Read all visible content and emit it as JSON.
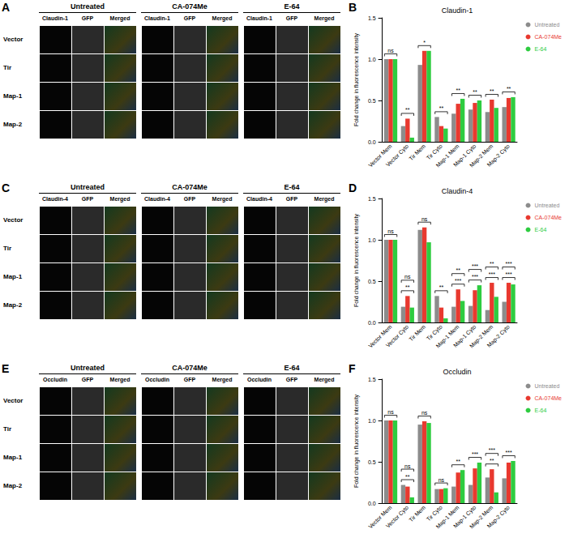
{
  "image_panels": [
    {
      "panel": "A",
      "groups": [
        "Untreated",
        "CA-074Me",
        "E-64"
      ],
      "columns": [
        "Claudin-1",
        "GFP",
        "Merged"
      ],
      "rows": [
        "Vector",
        "Tir",
        "Map-1",
        "Map-2"
      ]
    },
    {
      "panel": "C",
      "groups": [
        "Untreated",
        "CA-074Me",
        "E-64"
      ],
      "columns": [
        "Claudin-4",
        "GFP",
        "Merged"
      ],
      "rows": [
        "Vector",
        "Tir",
        "Map-1",
        "Map-2"
      ]
    },
    {
      "panel": "E",
      "groups": [
        "Untreated",
        "CA-074Me",
        "E-64"
      ],
      "columns": [
        "Occludin",
        "GFP",
        "Merged"
      ],
      "rows": [
        "Vector",
        "Tir",
        "Map-1",
        "Map-2"
      ]
    }
  ],
  "chart_data": [
    {
      "panel": "B",
      "type": "bar",
      "title": "Claudin-1",
      "ylabel": "Fold change in fluorescence intensity",
      "categories": [
        "Vector Mem",
        "Vector Cyto",
        "Tir Mem",
        "Tir Cyto",
        "Map-1 Mem",
        "Map-1 Cyto",
        "Map-2 Mem",
        "Map-2 Cyto"
      ],
      "series": [
        {
          "name": "Untreated",
          "color": "#8c8c8c",
          "values": [
            1,
            0.19,
            0.93,
            0.3,
            0.34,
            0.39,
            0.36,
            0.42
          ]
        },
        {
          "name": "CA-074Me",
          "color": "#e8392f",
          "values": [
            1,
            0.28,
            1.1,
            0.19,
            0.46,
            0.47,
            0.51,
            0.53
          ]
        },
        {
          "name": "E-64",
          "color": "#2ecc40",
          "values": [
            1,
            0.05,
            1.1,
            0.16,
            0.52,
            0.5,
            0.41,
            0.54
          ]
        }
      ],
      "ylim": [
        0,
        1.5
      ],
      "yticks": [
        {
          "value": 0,
          "label": "0.0"
        },
        0.5,
        {
          "value": 1,
          "label": "1.0"
        },
        1.5
      ],
      "legend": "right",
      "annotations": [
        {
          "category": "Vector Mem",
          "labels": [
            "ns"
          ]
        },
        {
          "category": "Vector Cyto",
          "labels": [
            "**"
          ]
        },
        {
          "category": "Tir Mem",
          "labels": [
            "*"
          ]
        },
        {
          "category": "Tir Cyto",
          "labels": [
            "**"
          ]
        },
        {
          "category": "Map-1 Mem",
          "labels": [
            "**"
          ]
        },
        {
          "category": "Map-1 Cyto",
          "labels": [
            "**"
          ]
        },
        {
          "category": "Map-2 Mem",
          "labels": [
            "**"
          ]
        },
        {
          "category": "Map-2 Cyto",
          "labels": [
            "**"
          ]
        }
      ]
    },
    {
      "panel": "D",
      "type": "bar",
      "title": "Claudin-4",
      "ylabel": "Fold change in fluorescence intensity",
      "categories": [
        "Vector Mem",
        "Vector Cyto",
        "Tir Mem",
        "Tir Cyto",
        "Map-1 Mem",
        "Map-1 Cyto",
        "Map-2 Mem",
        "Map-2 Cyto"
      ],
      "series": [
        {
          "name": "Untreated",
          "color": "#8c8c8c",
          "values": [
            1,
            0.19,
            1.12,
            0.32,
            0.19,
            0.2,
            0.15,
            0.25
          ]
        },
        {
          "name": "CA-074Me",
          "color": "#e8392f",
          "values": [
            1,
            0.32,
            1.15,
            0.18,
            0.4,
            0.39,
            0.48,
            0.48
          ]
        },
        {
          "name": "E-64",
          "color": "#2ecc40",
          "values": [
            1,
            0.18,
            0.97,
            0.05,
            0.26,
            0.45,
            0.31,
            0.46
          ]
        }
      ],
      "ylim": [
        0,
        1.5
      ],
      "yticks": [
        {
          "value": 0,
          "label": "0.0"
        },
        0.5,
        {
          "value": 1,
          "label": "1.0"
        },
        1.5
      ],
      "legend": "right",
      "annotations": [
        {
          "category": "Vector Mem",
          "labels": [
            "ns"
          ]
        },
        {
          "category": "Vector Cyto",
          "labels": [
            "**",
            "ns"
          ]
        },
        {
          "category": "Tir Mem",
          "labels": [
            "ns"
          ]
        },
        {
          "category": "Tir Cyto",
          "labels": [
            "**"
          ]
        },
        {
          "category": "Map-1 Mem",
          "labels": [
            "***",
            "**"
          ]
        },
        {
          "category": "Map-1 Cyto",
          "labels": [
            "***",
            "***"
          ]
        },
        {
          "category": "Map-2 Mem",
          "labels": [
            "***",
            "**"
          ]
        },
        {
          "category": "Map-2 Cyto",
          "labels": [
            "***",
            "***"
          ]
        }
      ]
    },
    {
      "panel": "F",
      "type": "bar",
      "title": "Occludin",
      "ylabel": "Fold change in fluorescence intensity",
      "categories": [
        "Vector Mem",
        "Vector Cyto",
        "Tir Mem",
        "Tir Cyto",
        "Map-1 Mem",
        "Map-1 Cyto",
        "Map-2 Mem",
        "Map-2 Cyto"
      ],
      "series": [
        {
          "name": "Untreated",
          "color": "#8c8c8c",
          "values": [
            1,
            0.22,
            0.95,
            0.17,
            0.2,
            0.22,
            0.31,
            0.3
          ]
        },
        {
          "name": "CA-074Me",
          "color": "#e8392f",
          "values": [
            1,
            0.2,
            0.99,
            0.17,
            0.37,
            0.42,
            0.41,
            0.49
          ]
        },
        {
          "name": "E-64",
          "color": "#2ecc40",
          "values": [
            1,
            0.07,
            0.97,
            0.18,
            0.4,
            0.49,
            0.13,
            0.51
          ]
        }
      ],
      "ylim": [
        0,
        1.5
      ],
      "yticks": [
        {
          "value": 0,
          "label": "0.0"
        },
        0.5,
        {
          "value": 1,
          "label": "1.0"
        },
        1.5
      ],
      "legend": "right",
      "annotations": [
        {
          "category": "Vector Mem",
          "labels": [
            "ns"
          ]
        },
        {
          "category": "Vector Cyto",
          "labels": [
            "**",
            "ns"
          ]
        },
        {
          "category": "Tir Mem",
          "labels": [
            "ns"
          ]
        },
        {
          "category": "Tir Cyto",
          "labels": [
            "ns"
          ]
        },
        {
          "category": "Map-1 Mem",
          "labels": [
            "**"
          ]
        },
        {
          "category": "Map-1 Cyto",
          "labels": [
            "***"
          ]
        },
        {
          "category": "Map-2 Mem",
          "labels": [
            "**",
            "***"
          ]
        },
        {
          "category": "Map-2 Cyto",
          "labels": [
            "***"
          ]
        }
      ]
    }
  ]
}
